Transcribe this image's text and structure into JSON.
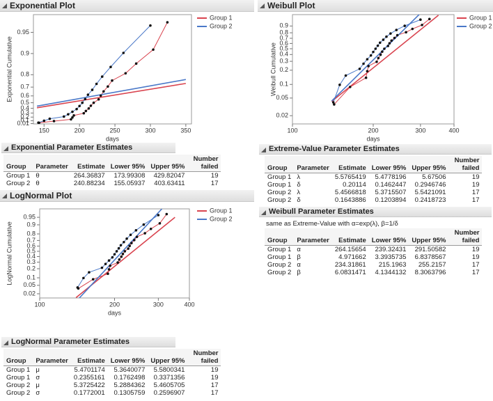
{
  "chart_data": [
    {
      "type": "line",
      "title": "Exponential Plot",
      "xlabel": "days",
      "ylabel": "Exponential Cumulative",
      "xscale": "linear",
      "yscale": "exponential",
      "xlim": [
        135,
        358
      ],
      "ylim": [
        0,
        0.972
      ],
      "xticks": [
        150,
        200,
        250,
        300,
        350
      ],
      "yticks": [
        0.01,
        0.1,
        0.2,
        0.3,
        0.4,
        0.5,
        0.6,
        0.7,
        0.8,
        0.9,
        0.95
      ],
      "series": [
        {
          "name": "Group 1",
          "color": "#d9444f",
          "x": [
            143,
            164,
            188,
            190,
            192,
            206,
            209,
            213,
            216,
            220,
            227,
            230,
            234,
            240,
            246,
            265,
            280,
            304,
            324
          ],
          "values": [
            0.036,
            0.088,
            0.139,
            0.191,
            0.242,
            0.294,
            0.345,
            0.397,
            0.448,
            0.5,
            0.552,
            0.603,
            0.655,
            0.706,
            0.758,
            0.809,
            0.861,
            0.912,
            0.964
          ],
          "fit_x": [
            140,
            350
          ],
          "fit_values": [
            0.41,
            0.734
          ]
        },
        {
          "name": "Group 2",
          "color": "#4a78c8",
          "x": [
            142,
            150,
            158,
            178,
            184,
            190,
            196,
            200,
            204,
            208,
            212,
            218,
            224,
            232,
            244,
            262,
            300
          ],
          "values": [
            0.04,
            0.098,
            0.155,
            0.213,
            0.27,
            0.328,
            0.385,
            0.443,
            0.5,
            0.557,
            0.615,
            0.672,
            0.73,
            0.787,
            0.845,
            0.902,
            0.96
          ],
          "fit_x": [
            140,
            350
          ],
          "fit_values": [
            0.441,
            0.766
          ]
        }
      ]
    },
    {
      "type": "line",
      "title": "Weibull Plot",
      "xlabel": "days",
      "ylabel": "Weibull Cumulative",
      "xscale": "log",
      "yscale": "weibull",
      "xlim": [
        100,
        400
      ],
      "ylim": [
        0.013,
        0.985
      ],
      "xticks": [
        100,
        200,
        300,
        400
      ],
      "yticks": [
        0.02,
        0.05,
        0.1,
        0.2,
        0.3,
        0.4,
        0.5,
        0.6,
        0.7,
        0.8,
        0.9
      ],
      "series": [
        {
          "name": "Group 1",
          "color": "#d9444f",
          "x": [
            143,
            164,
            188,
            190,
            192,
            206,
            209,
            213,
            216,
            220,
            227,
            230,
            234,
            240,
            246,
            265,
            280,
            304,
            324
          ],
          "values": [
            0.036,
            0.088,
            0.139,
            0.191,
            0.242,
            0.294,
            0.345,
            0.397,
            0.448,
            0.5,
            0.552,
            0.603,
            0.655,
            0.706,
            0.758,
            0.809,
            0.861,
            0.912,
            0.964
          ],
          "fit_x": [
            140,
            350
          ],
          "fit_values": [
            0.042,
            0.983
          ]
        },
        {
          "name": "Group 2",
          "color": "#4a78c8",
          "x": [
            142,
            150,
            158,
            178,
            184,
            190,
            196,
            200,
            204,
            208,
            212,
            218,
            224,
            232,
            244,
            262,
            300
          ],
          "values": [
            0.04,
            0.098,
            0.155,
            0.213,
            0.27,
            0.328,
            0.385,
            0.443,
            0.5,
            0.557,
            0.615,
            0.672,
            0.73,
            0.787,
            0.845,
            0.902,
            0.96
          ],
          "fit_x": [
            140,
            310
          ],
          "fit_values": [
            0.043,
            0.996
          ]
        }
      ]
    },
    {
      "type": "line",
      "title": "LogNormal Plot",
      "xlabel": "days",
      "ylabel": "LogNormal Cumulative",
      "xscale": "log",
      "yscale": "lognormal",
      "xlim": [
        100,
        400
      ],
      "ylim": [
        0.012,
        0.98
      ],
      "xticks": [
        100,
        200,
        300,
        400
      ],
      "yticks": [
        0.02,
        0.05,
        0.1,
        0.2,
        0.3,
        0.4,
        0.5,
        0.6,
        0.7,
        0.8,
        0.9,
        0.95
      ],
      "series": [
        {
          "name": "Group 1",
          "color": "#d9444f",
          "x": [
            143,
            164,
            188,
            190,
            192,
            206,
            209,
            213,
            216,
            220,
            227,
            230,
            234,
            240,
            246,
            265,
            280,
            304,
            324
          ],
          "values": [
            0.036,
            0.088,
            0.139,
            0.191,
            0.242,
            0.294,
            0.345,
            0.397,
            0.448,
            0.5,
            0.552,
            0.603,
            0.655,
            0.706,
            0.758,
            0.809,
            0.861,
            0.912,
            0.964
          ],
          "fit_x": [
            140,
            350
          ],
          "fit_values": [
            0.0125,
            0.95
          ]
        },
        {
          "name": "Group 2",
          "color": "#4a78c8",
          "x": [
            142,
            150,
            158,
            178,
            184,
            190,
            196,
            200,
            204,
            208,
            212,
            218,
            224,
            232,
            244,
            262,
            300
          ],
          "values": [
            0.04,
            0.098,
            0.155,
            0.213,
            0.27,
            0.328,
            0.385,
            0.443,
            0.5,
            0.557,
            0.615,
            0.672,
            0.73,
            0.787,
            0.845,
            0.902,
            0.96
          ],
          "fit_x": [
            140,
            310
          ],
          "fit_values": [
            0.0075,
            0.98
          ]
        }
      ]
    }
  ],
  "tables": [
    {
      "title": "Exponential Parameter Estimates",
      "headers": [
        "Group",
        "Parameter",
        "Estimate",
        "Lower 95%",
        "Upper 95%",
        "Number failed"
      ],
      "rows": [
        [
          "Group 1",
          "θ",
          "264.36837",
          "173.99308",
          "429.82047",
          "19"
        ],
        [
          "Group 2",
          "θ",
          "240.88234",
          "155.05937",
          "403.63411",
          "17"
        ]
      ]
    },
    {
      "title": "Extreme-Value Parameter Estimates",
      "headers": [
        "Group",
        "Parameter",
        "Estimate",
        "Lower 95%",
        "Upper 95%",
        "Number failed"
      ],
      "rows": [
        [
          "Group 1",
          "λ",
          "5.5765419",
          "5.4778196",
          "5.67506",
          "19"
        ],
        [
          "Group 1",
          "δ",
          "0.20114",
          "0.1462447",
          "0.2946746",
          "19"
        ],
        [
          "Group 2",
          "λ",
          "5.4566818",
          "5.3715507",
          "5.5421091",
          "17"
        ],
        [
          "Group 2",
          "δ",
          "0.1643886",
          "0.1203894",
          "0.2418723",
          "17"
        ]
      ]
    },
    {
      "title": "Weibull Parameter Estimates",
      "note": "same as Extreme-Value with α=exp(λ), β=1/δ",
      "headers": [
        "Group",
        "Parameter",
        "Estimate",
        "Lower 95%",
        "Upper 95%",
        "Number failed"
      ],
      "rows": [
        [
          "Group 1",
          "α",
          "264.15654",
          "239.32431",
          "291.50582",
          "19"
        ],
        [
          "Group 1",
          "β",
          "4.971662",
          "3.3935735",
          "6.8378567",
          "19"
        ],
        [
          "Group 2",
          "α",
          "234.31861",
          "215.1963",
          "255.2157",
          "17"
        ],
        [
          "Group 2",
          "β",
          "6.0831471",
          "4.1344132",
          "8.3063796",
          "17"
        ]
      ]
    },
    {
      "title": "LogNormal Parameter Estimates",
      "headers": [
        "Group",
        "Parameter",
        "Estimate",
        "Lower 95%",
        "Upper 95%",
        "Number failed"
      ],
      "rows": [
        [
          "Group 1",
          "μ",
          "5.4701174",
          "5.3640077",
          "5.5800341",
          "19"
        ],
        [
          "Group 1",
          "σ",
          "0.2355161",
          "0.1762498",
          "0.3371356",
          "19"
        ],
        [
          "Group 2",
          "μ",
          "5.3725422",
          "5.2884362",
          "5.4605705",
          "17"
        ],
        [
          "Group 2",
          "σ",
          "0.1772001",
          "0.1305759",
          "0.2596907",
          "17"
        ]
      ]
    }
  ]
}
